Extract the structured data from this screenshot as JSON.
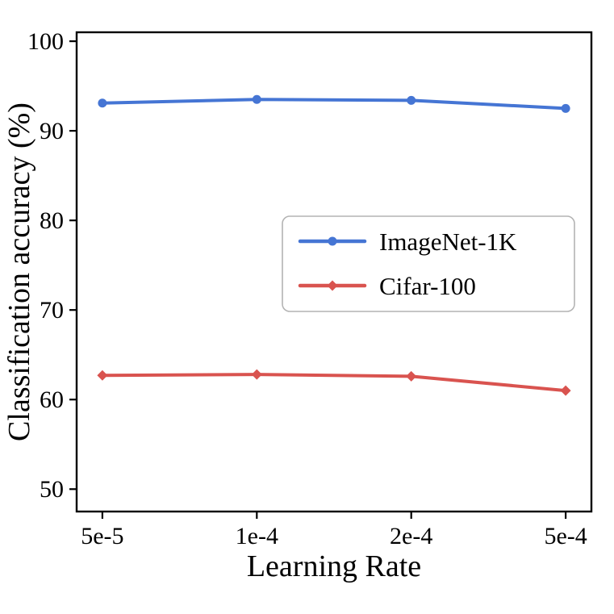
{
  "chart_data": {
    "type": "line",
    "title": "",
    "xlabel": "Learning Rate",
    "ylabel": "Classification accuracy (%)",
    "x_ticklabels": [
      "5e-5",
      "1e-4",
      "2e-4",
      "5e-4"
    ],
    "y_ticks": [
      50,
      60,
      70,
      80,
      90,
      100
    ],
    "ylim": [
      47.5,
      101
    ],
    "grid": false,
    "legend_position": "center-right",
    "colors": {
      "axis": "#000000",
      "legend_border": "#b3b3b3",
      "background": "#ffffff"
    },
    "series": [
      {
        "name": "ImageNet-1K",
        "color": "#4575d4",
        "marker": "circle",
        "values": [
          93.1,
          93.5,
          93.4,
          92.5
        ]
      },
      {
        "name": "Cifar-100",
        "color": "#d9534f",
        "marker": "diamond",
        "values": [
          62.7,
          62.8,
          62.6,
          61.0
        ]
      }
    ]
  }
}
